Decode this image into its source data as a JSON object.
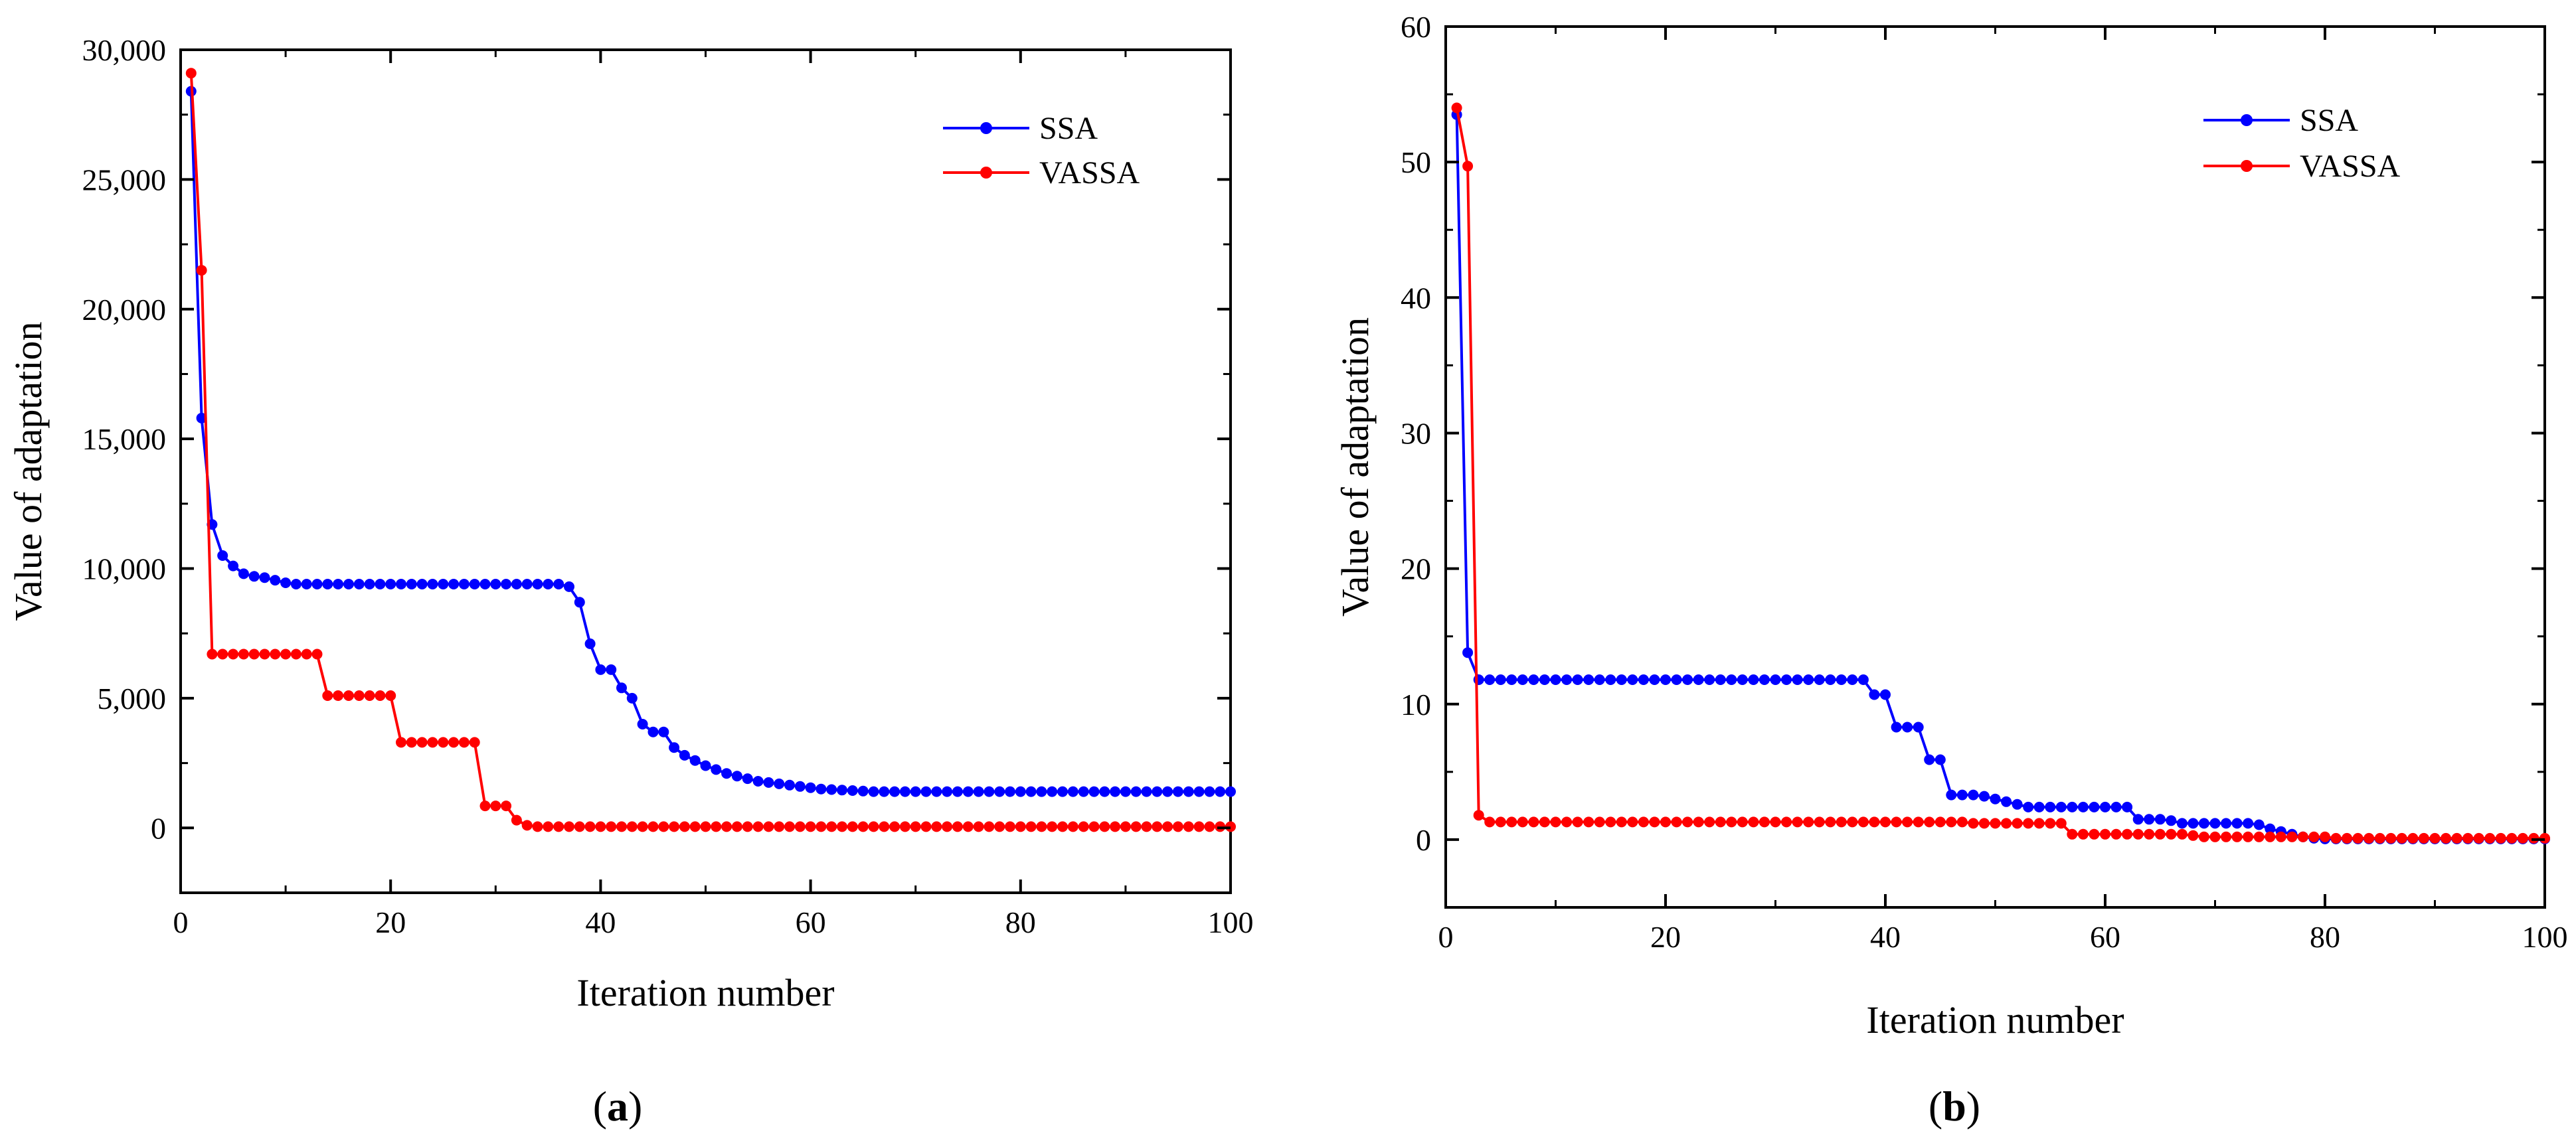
{
  "colors": {
    "ssa": "#0000ff",
    "vassa": "#ff0000",
    "axis": "#000000"
  },
  "chart_data": [
    {
      "type": "line",
      "panel_label": "a",
      "panel_label_full": "(a)",
      "xlabel": "Iteration number",
      "ylabel": "Value of adaptation",
      "xlim": [
        0,
        100
      ],
      "ylim": [
        -2500,
        30000
      ],
      "xticks": [
        0,
        20,
        40,
        60,
        80,
        100
      ],
      "xtick_labels": [
        "0",
        "20",
        "40",
        "60",
        "80",
        "100"
      ],
      "yticks": [
        0,
        5000,
        10000,
        15000,
        20000,
        25000,
        30000
      ],
      "ytick_labels": [
        "0",
        "5,000",
        "10,000",
        "15,000",
        "20,000",
        "25,000",
        "30,000"
      ],
      "legend_position": "top-right",
      "series": [
        {
          "name": "SSA",
          "color": "#0000ff",
          "values": [
            28400,
            15800,
            11700,
            10500,
            10100,
            9800,
            9700,
            9650,
            9550,
            9450,
            9400,
            9400,
            9400,
            9400,
            9400,
            9400,
            9400,
            9400,
            9400,
            9400,
            9400,
            9400,
            9400,
            9400,
            9400,
            9400,
            9400,
            9400,
            9400,
            9400,
            9400,
            9400,
            9400,
            9400,
            9400,
            9400,
            9300,
            8700,
            7100,
            6100,
            6100,
            5400,
            5000,
            4000,
            3700,
            3700,
            3100,
            2800,
            2600,
            2400,
            2250,
            2100,
            2000,
            1900,
            1800,
            1750,
            1700,
            1650,
            1600,
            1550,
            1500,
            1480,
            1460,
            1440,
            1420,
            1400,
            1400,
            1400,
            1400,
            1400,
            1400,
            1400,
            1400,
            1400,
            1400,
            1400,
            1400,
            1400,
            1400,
            1400,
            1400,
            1400,
            1400,
            1400,
            1400,
            1400,
            1400,
            1400,
            1400,
            1400,
            1400,
            1400,
            1400,
            1400,
            1400,
            1400,
            1400,
            1400,
            1400,
            1400
          ]
        },
        {
          "name": "VASSA",
          "color": "#ff0000",
          "values": [
            29100,
            21500,
            6700,
            6700,
            6700,
            6700,
            6700,
            6700,
            6700,
            6700,
            6700,
            6700,
            6700,
            5100,
            5100,
            5100,
            5100,
            5100,
            5100,
            5100,
            3300,
            3300,
            3300,
            3300,
            3300,
            3300,
            3300,
            3300,
            850,
            850,
            850,
            300,
            100,
            50,
            50,
            50,
            50,
            50,
            50,
            50,
            50,
            50,
            50,
            50,
            50,
            50,
            50,
            50,
            50,
            50,
            50,
            50,
            50,
            50,
            50,
            50,
            50,
            50,
            50,
            50,
            50,
            50,
            50,
            50,
            50,
            50,
            50,
            50,
            50,
            50,
            50,
            50,
            50,
            50,
            50,
            50,
            50,
            50,
            50,
            50,
            50,
            50,
            50,
            50,
            50,
            50,
            50,
            50,
            50,
            50,
            50,
            50,
            50,
            50,
            50,
            50,
            50,
            50,
            50,
            50
          ]
        }
      ]
    },
    {
      "type": "line",
      "panel_label": "b",
      "panel_label_full": "(b)",
      "xlabel": "Iteration number",
      "ylabel": "Value of adaptation",
      "xlim": [
        0,
        100
      ],
      "ylim": [
        -5,
        60
      ],
      "xticks": [
        0,
        20,
        40,
        60,
        80,
        100
      ],
      "xtick_labels": [
        "0",
        "20",
        "40",
        "60",
        "80",
        "100"
      ],
      "yticks": [
        0,
        10,
        20,
        30,
        40,
        50,
        60
      ],
      "ytick_labels": [
        "0",
        "10",
        "20",
        "30",
        "40",
        "50",
        "60"
      ],
      "legend_position": "top-right",
      "series": [
        {
          "name": "SSA",
          "color": "#0000ff",
          "values": [
            53.5,
            13.8,
            11.8,
            11.8,
            11.8,
            11.8,
            11.8,
            11.8,
            11.8,
            11.8,
            11.8,
            11.8,
            11.8,
            11.8,
            11.8,
            11.8,
            11.8,
            11.8,
            11.8,
            11.8,
            11.8,
            11.8,
            11.8,
            11.8,
            11.8,
            11.8,
            11.8,
            11.8,
            11.8,
            11.8,
            11.8,
            11.8,
            11.8,
            11.8,
            11.8,
            11.8,
            11.8,
            11.8,
            10.7,
            10.7,
            8.3,
            8.3,
            8.3,
            5.9,
            5.9,
            3.3,
            3.3,
            3.3,
            3.2,
            3.0,
            2.8,
            2.6,
            2.4,
            2.4,
            2.4,
            2.4,
            2.4,
            2.4,
            2.4,
            2.4,
            2.4,
            2.4,
            1.5,
            1.5,
            1.5,
            1.4,
            1.2,
            1.2,
            1.2,
            1.2,
            1.2,
            1.2,
            1.2,
            1.1,
            0.8,
            0.6,
            0.4,
            0.2,
            0.1,
            0.05,
            0.05,
            0.05,
            0.05,
            0.05,
            0.05,
            0.05,
            0.05,
            0.05,
            0.05,
            0.05,
            0.05,
            0.05,
            0.05,
            0.05,
            0.05,
            0.05,
            0.05,
            0.05,
            0.05,
            0.05
          ]
        },
        {
          "name": "VASSA",
          "color": "#ff0000",
          "values": [
            54.0,
            49.7,
            1.8,
            1.3,
            1.3,
            1.3,
            1.3,
            1.3,
            1.3,
            1.3,
            1.3,
            1.3,
            1.3,
            1.3,
            1.3,
            1.3,
            1.3,
            1.3,
            1.3,
            1.3,
            1.3,
            1.3,
            1.3,
            1.3,
            1.3,
            1.3,
            1.3,
            1.3,
            1.3,
            1.3,
            1.3,
            1.3,
            1.3,
            1.3,
            1.3,
            1.3,
            1.3,
            1.3,
            1.3,
            1.3,
            1.3,
            1.3,
            1.3,
            1.3,
            1.3,
            1.3,
            1.3,
            1.2,
            1.2,
            1.2,
            1.2,
            1.2,
            1.2,
            1.2,
            1.2,
            1.2,
            0.4,
            0.4,
            0.4,
            0.4,
            0.4,
            0.4,
            0.4,
            0.4,
            0.4,
            0.4,
            0.4,
            0.3,
            0.2,
            0.2,
            0.2,
            0.2,
            0.2,
            0.2,
            0.2,
            0.2,
            0.2,
            0.2,
            0.2,
            0.2,
            0.1,
            0.1,
            0.1,
            0.1,
            0.1,
            0.1,
            0.1,
            0.1,
            0.1,
            0.1,
            0.1,
            0.1,
            0.1,
            0.1,
            0.1,
            0.1,
            0.1,
            0.1,
            0.1,
            0.1
          ]
        }
      ]
    }
  ]
}
